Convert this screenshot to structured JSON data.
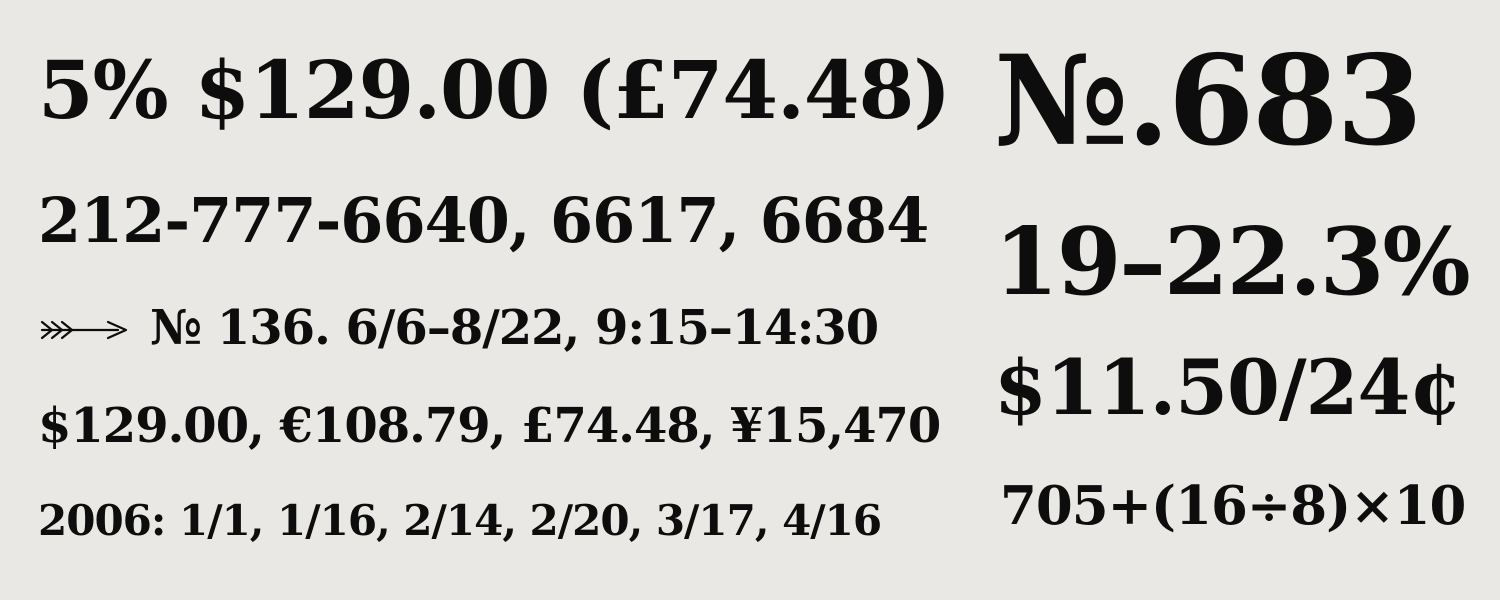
{
  "specimen": {
    "left_lines": [
      "5% $129.00 (£74.48)",
      "212-777-6640, 6617, 6684",
      "№ 136. 6/6–8/22, 9:15–14:30",
      "$129.00, €108.79, £74.48, ¥15,470",
      "2006: 1/1, 1/16, 2/14, 2/20, 3/17, 4/16"
    ],
    "right_lines": [
      "№.683",
      "19–22.3%",
      "$11.50/24¢",
      "705+(16÷8)×10"
    ]
  },
  "icons": {
    "arrow": "fletched-arrow-icon"
  },
  "colors": {
    "background": "#e9e8e4",
    "ink": "#0d0d0d"
  }
}
